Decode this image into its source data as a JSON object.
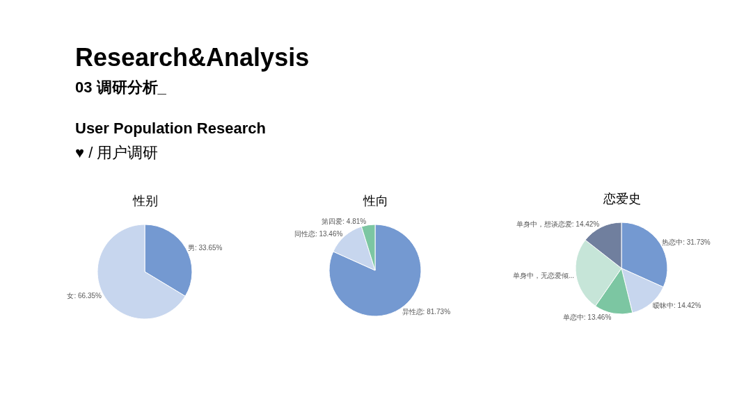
{
  "chart_data": [
    {
      "type": "other",
      "title": "Research&Analysis",
      "subtitle": "03 调研分析_",
      "annotations": [
        "User Population Research",
        "♥ / 用户调研"
      ]
    },
    {
      "type": "pie",
      "title": "性别",
      "categories": [
        "男",
        "女"
      ],
      "values": [
        33.65,
        66.35
      ],
      "colors": [
        "#7499d1",
        "#c7d6ee"
      ],
      "value_labels": [
        "33.65%",
        "66.35%"
      ]
    },
    {
      "type": "pie",
      "title": "性向",
      "categories": [
        "异性恋",
        "同性恋",
        "第四爱"
      ],
      "values": [
        81.73,
        13.46,
        4.81
      ],
      "colors": [
        "#7499d1",
        "#c7d6ee",
        "#7cc6a2"
      ],
      "value_labels": [
        "81.73%",
        "13.46%",
        "4.81%"
      ]
    },
    {
      "type": "pie",
      "title": "恋爱史",
      "categories": [
        "热恋中",
        "暧昧中",
        "单恋中",
        "单身中，无恋爱倾...",
        "单身中，想谈恋爱"
      ],
      "values": [
        31.73,
        14.42,
        13.46,
        25.97,
        14.42
      ],
      "colors": [
        "#7499d1",
        "#c7d6ee",
        "#7cc6a2",
        "#c6e5d8",
        "#707f9e"
      ],
      "value_labels": [
        "31.73%",
        "14.42%",
        "13.46%",
        null,
        "14.42%"
      ]
    }
  ]
}
